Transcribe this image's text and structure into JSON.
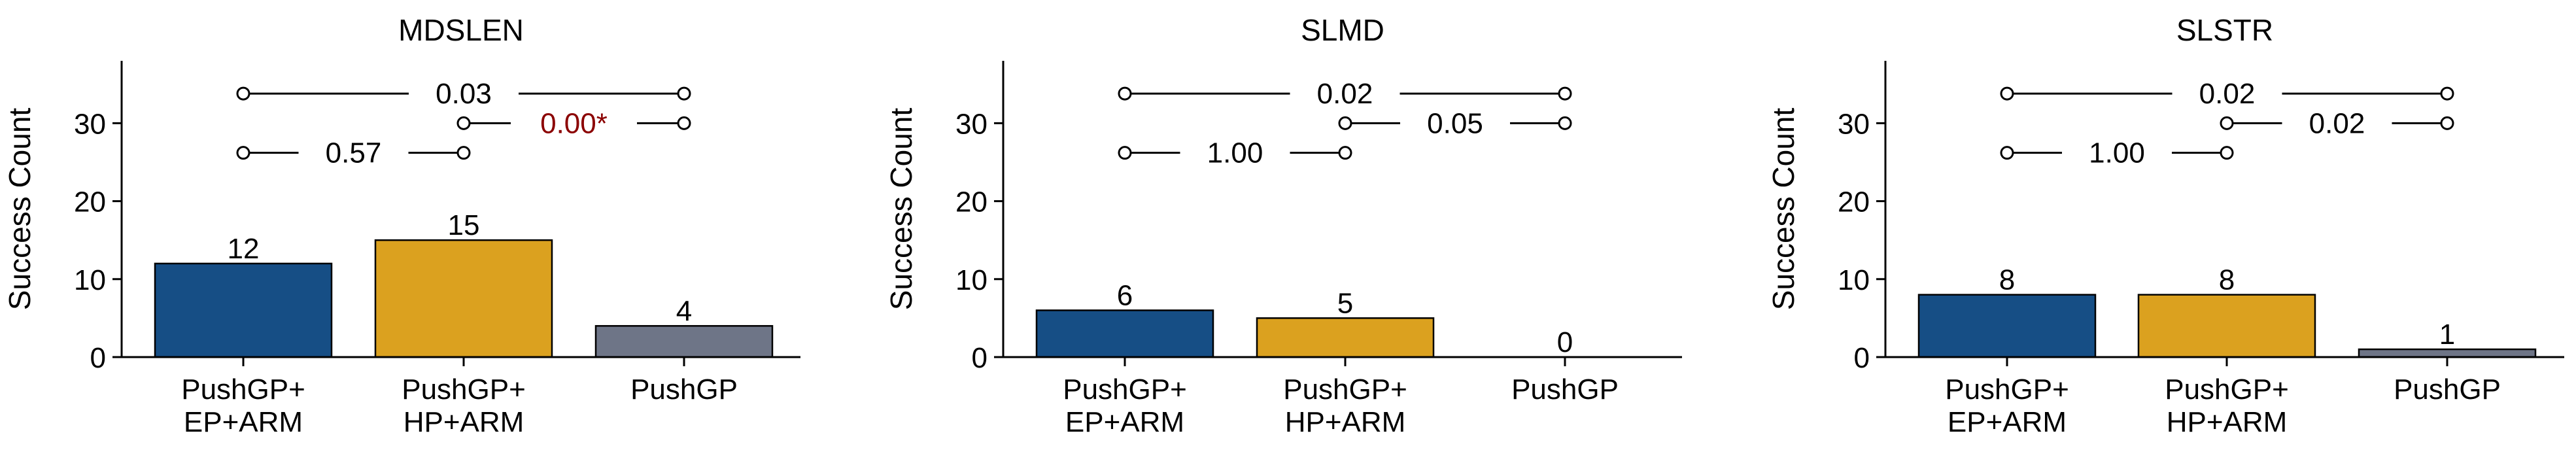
{
  "chart_data": [
    {
      "type": "bar",
      "title": "MDSLEN",
      "ylabel": "Success Count",
      "xlabel": "",
      "ylim": [
        0,
        38
      ],
      "yticks": [
        0,
        10,
        20,
        30
      ],
      "categories": [
        "PushGP+\nEP+ARM",
        "PushGP+\nHP+ARM",
        "PushGP"
      ],
      "values": [
        12,
        15,
        4
      ],
      "bar_labels": [
        "12",
        "15",
        "4"
      ],
      "colors": [
        "#164e85",
        "#dba11f",
        "#6e7587"
      ],
      "comparisons": [
        {
          "from": 0,
          "to": 1,
          "level": 26.2,
          "label": "0.57",
          "significant": false
        },
        {
          "from": 1,
          "to": 2,
          "level": 30.0,
          "label": "0.00*",
          "significant": true
        },
        {
          "from": 0,
          "to": 2,
          "level": 33.8,
          "label": "0.03",
          "significant": false
        }
      ]
    },
    {
      "type": "bar",
      "title": "SLMD",
      "ylabel": "Success Count",
      "xlabel": "",
      "ylim": [
        0,
        38
      ],
      "yticks": [
        0,
        10,
        20,
        30
      ],
      "categories": [
        "PushGP+\nEP+ARM",
        "PushGP+\nHP+ARM",
        "PushGP"
      ],
      "values": [
        6,
        5,
        0
      ],
      "bar_labels": [
        "6",
        "5",
        "0"
      ],
      "colors": [
        "#164e85",
        "#dba11f",
        "#6e7587"
      ],
      "comparisons": [
        {
          "from": 0,
          "to": 1,
          "level": 26.2,
          "label": "1.00",
          "significant": false
        },
        {
          "from": 1,
          "to": 2,
          "level": 30.0,
          "label": "0.05",
          "significant": false
        },
        {
          "from": 0,
          "to": 2,
          "level": 33.8,
          "label": "0.02",
          "significant": false
        }
      ]
    },
    {
      "type": "bar",
      "title": "SLSTR",
      "ylabel": "Success Count",
      "xlabel": "",
      "ylim": [
        0,
        38
      ],
      "yticks": [
        0,
        10,
        20,
        30
      ],
      "categories": [
        "PushGP+\nEP+ARM",
        "PushGP+\nHP+ARM",
        "PushGP"
      ],
      "values": [
        8,
        8,
        1
      ],
      "bar_labels": [
        "8",
        "8",
        "1"
      ],
      "colors": [
        "#164e85",
        "#dba11f",
        "#6e7587"
      ],
      "comparisons": [
        {
          "from": 0,
          "to": 1,
          "level": 26.2,
          "label": "1.00",
          "significant": false
        },
        {
          "from": 1,
          "to": 2,
          "level": 30.0,
          "label": "0.02",
          "significant": false
        },
        {
          "from": 0,
          "to": 2,
          "level": 33.8,
          "label": "0.02",
          "significant": false
        }
      ]
    }
  ],
  "significant_color": "#8b0000",
  "text_color": "#000000"
}
